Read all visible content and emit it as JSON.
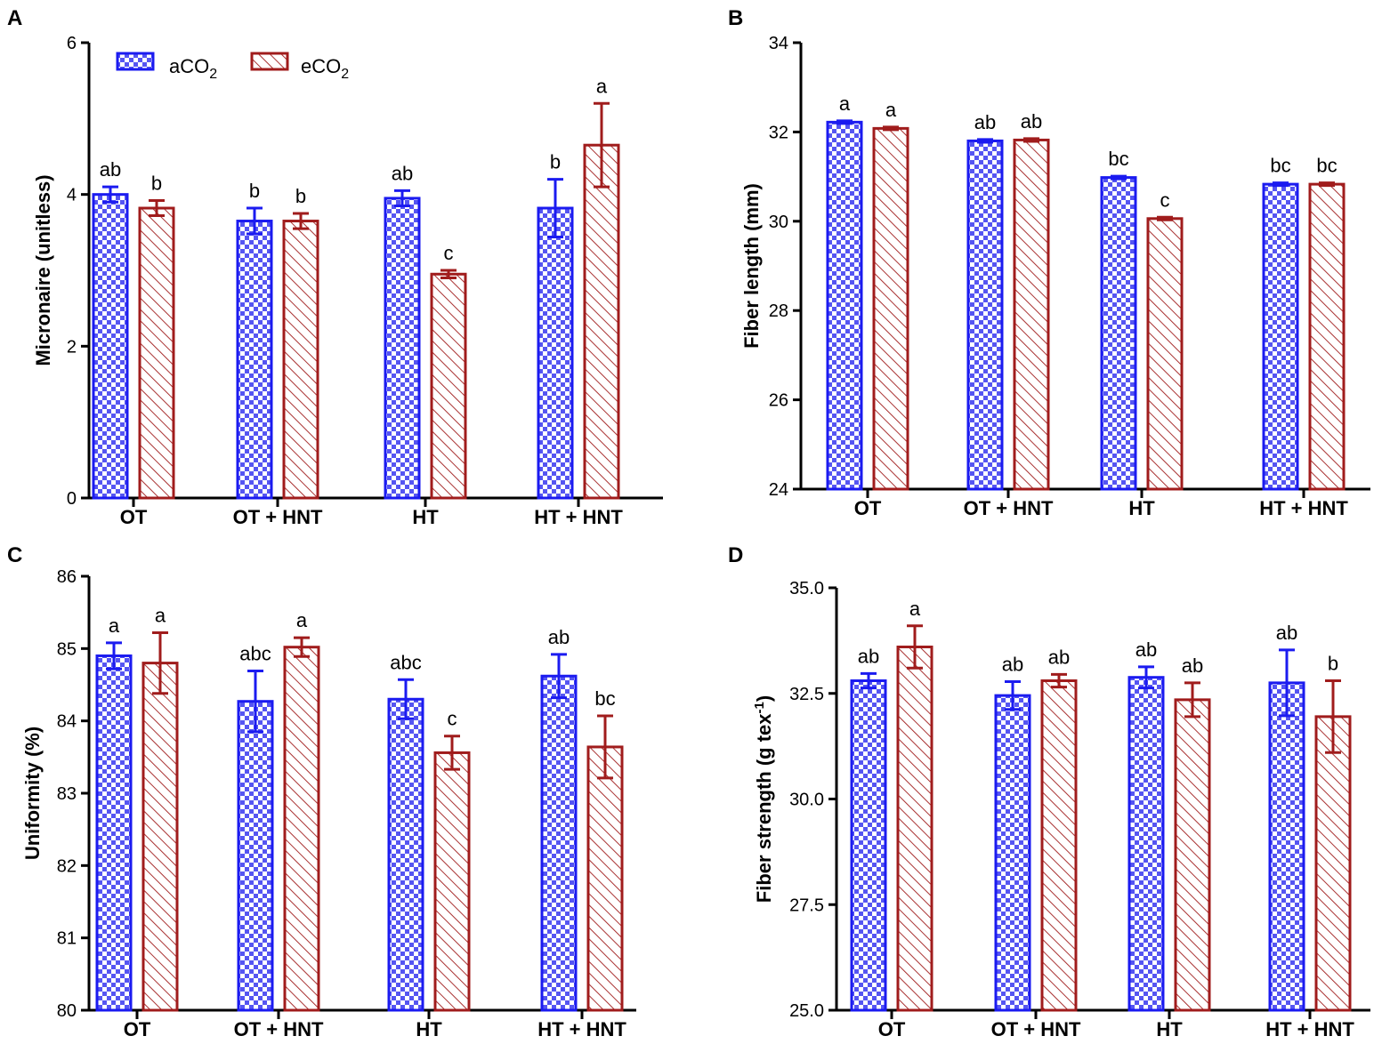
{
  "colors": {
    "aco2": "#1b1bf0",
    "eco2": "#a01c1c"
  },
  "legend": [
    {
      "key": "aco2",
      "base": "aCO",
      "sub": "2"
    },
    {
      "key": "eco2",
      "base": "eCO",
      "sub": "2"
    }
  ],
  "chart_data": [
    {
      "panel": "A",
      "type": "bar",
      "categories": [
        "OT",
        "OT + HNT",
        "HT",
        "HT + HNT"
      ],
      "ylabel": "Micronaire (unitless)",
      "ylim": [
        0,
        6
      ],
      "yticks": [
        "0",
        "2",
        "4",
        "6"
      ],
      "ytick_values": [
        0,
        2,
        4,
        6
      ],
      "show_legend": true,
      "series": [
        {
          "key": "aco2",
          "values": [
            4.0,
            3.65,
            3.95,
            3.82
          ],
          "errors": [
            0.1,
            0.17,
            0.1,
            0.38
          ],
          "sig": [
            "ab",
            "b",
            "ab",
            "b"
          ]
        },
        {
          "key": "eco2",
          "values": [
            3.82,
            3.65,
            2.95,
            4.65
          ],
          "errors": [
            0.1,
            0.1,
            0.05,
            0.55
          ],
          "sig": [
            "b",
            "b",
            "c",
            "a"
          ]
        }
      ]
    },
    {
      "panel": "B",
      "type": "bar",
      "categories": [
        "OT",
        "OT + HNT",
        "HT",
        "HT + HNT"
      ],
      "ylabel": "Fiber length (mm)",
      "ylim": [
        24,
        34
      ],
      "yticks": [
        "24",
        "26",
        "28",
        "30",
        "32",
        "34"
      ],
      "ytick_values": [
        24,
        26,
        28,
        30,
        32,
        34
      ],
      "show_legend": false,
      "series": [
        {
          "key": "aco2",
          "values": [
            32.22,
            31.8,
            30.98,
            30.83
          ],
          "errors": [
            0.03,
            0.03,
            0.03,
            0.03
          ],
          "sig": [
            "a",
            "ab",
            "bc",
            "bc"
          ]
        },
        {
          "key": "eco2",
          "values": [
            32.08,
            31.82,
            30.06,
            30.83
          ],
          "errors": [
            0.03,
            0.03,
            0.03,
            0.03
          ],
          "sig": [
            "a",
            "ab",
            "c",
            "bc"
          ]
        }
      ]
    },
    {
      "panel": "C",
      "type": "bar",
      "categories": [
        "OT",
        "OT + HNT",
        "HT",
        "HT + HNT"
      ],
      "ylabel": "Uniformity (%)",
      "ylim": [
        80,
        86
      ],
      "yticks": [
        "80",
        "81",
        "82",
        "83",
        "84",
        "85",
        "86"
      ],
      "ytick_values": [
        80,
        81,
        82,
        83,
        84,
        85,
        86
      ],
      "show_legend": false,
      "series": [
        {
          "key": "aco2",
          "values": [
            84.9,
            84.27,
            84.3,
            84.62
          ],
          "errors": [
            0.18,
            0.42,
            0.27,
            0.3
          ],
          "sig": [
            "a",
            "abc",
            "abc",
            "ab"
          ]
        },
        {
          "key": "eco2",
          "values": [
            84.8,
            85.02,
            83.56,
            83.64
          ],
          "errors": [
            0.42,
            0.13,
            0.23,
            0.43
          ],
          "sig": [
            "a",
            "a",
            "c",
            "bc"
          ]
        }
      ]
    },
    {
      "panel": "D",
      "type": "bar",
      "categories": [
        "OT",
        "OT + HNT",
        "HT",
        "HT + HNT"
      ],
      "ylabel": "Fiber strength (g tex",
      "ylabel_sup": "-1",
      "ylabel_end": ")",
      "ylim": [
        25,
        35
      ],
      "yticks": [
        "25.0",
        "27.5",
        "30.0",
        "32.5",
        "35.0"
      ],
      "ytick_values": [
        25,
        27.5,
        30,
        32.5,
        35
      ],
      "show_legend": false,
      "series": [
        {
          "key": "aco2",
          "values": [
            32.8,
            32.45,
            32.88,
            32.75
          ],
          "errors": [
            0.17,
            0.33,
            0.25,
            0.78
          ],
          "sig": [
            "ab",
            "ab",
            "ab",
            "ab"
          ]
        },
        {
          "key": "eco2",
          "values": [
            33.6,
            32.8,
            32.35,
            31.95
          ],
          "errors": [
            0.5,
            0.15,
            0.4,
            0.85
          ],
          "sig": [
            "a",
            "ab",
            "ab",
            "b"
          ]
        }
      ]
    }
  ]
}
